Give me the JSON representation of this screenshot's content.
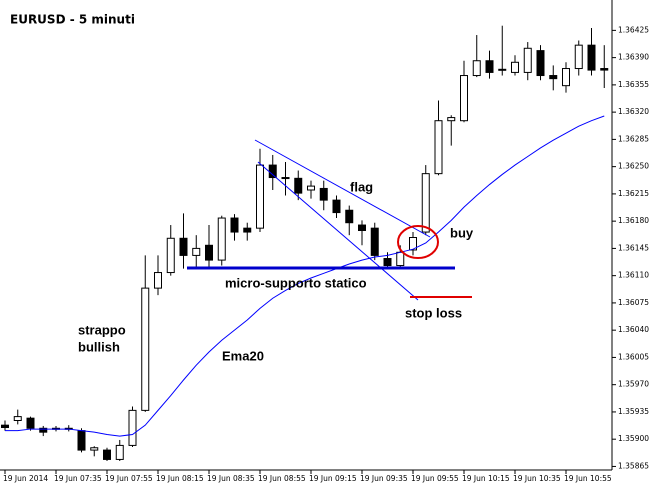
{
  "chart_data": {
    "type": "candlestick",
    "title": "EURUSD - 5 minuti",
    "categories": [
      "19 Jun 2014",
      null,
      null,
      null,
      "19 Jun 07:35",
      null,
      null,
      null,
      "19 Jun 07:55",
      null,
      null,
      null,
      "19 Jun 08:15",
      null,
      null,
      null,
      "19 Jun 08:35",
      null,
      null,
      null,
      "19 Jun 08:55",
      null,
      null,
      null,
      "19 Jun 09:15",
      null,
      null,
      null,
      "19 Jun 09:35",
      null,
      null,
      null,
      "19 Jun 09:55",
      null,
      null,
      null,
      "19 Jun 10:15",
      null,
      null,
      null,
      "19 Jun 10:35",
      null,
      null,
      null,
      "19 Jun 10:55",
      null,
      null,
      null
    ],
    "open": [
      1.35918,
      1.35924,
      1.35927,
      1.35914,
      1.35913,
      1.35914,
      1.35911,
      1.35886,
      1.35886,
      1.35874,
      1.35892,
      1.35937,
      1.36094,
      1.36114,
      1.36158,
      1.36136,
      1.36149,
      1.3613,
      1.36184,
      1.36171,
      1.36171,
      1.36252,
      1.36236,
      1.36235,
      1.3622,
      1.36222,
      1.36207,
      1.36194,
      1.36175,
      1.36171,
      1.36132,
      1.36123,
      1.36143,
      1.36166,
      1.36241,
      1.36309,
      1.36309,
      1.36367,
      1.36386,
      1.36374,
      1.36371,
      1.36371,
      1.36399,
      1.36367,
      1.36354,
      1.36376,
      1.36406,
      1.36376
    ],
    "high": [
      1.35924,
      1.35938,
      1.35929,
      1.35917,
      1.35917,
      1.35918,
      1.35914,
      1.35891,
      1.35889,
      1.35899,
      1.35942,
      1.36136,
      1.36136,
      1.36175,
      1.3619,
      1.36162,
      1.36175,
      1.36187,
      1.36189,
      1.36178,
      1.36273,
      1.36265,
      1.36256,
      1.36245,
      1.36232,
      1.36232,
      1.36213,
      1.362,
      1.36181,
      1.36178,
      1.3614,
      1.36149,
      1.36166,
      1.36252,
      1.36335,
      1.36316,
      1.36386,
      1.36419,
      1.36399,
      1.36431,
      1.36393,
      1.3641,
      1.36406,
      1.3638,
      1.36384,
      1.36412,
      1.36428,
      1.36406
    ],
    "low": [
      1.35911,
      1.35919,
      1.35911,
      1.35904,
      1.3591,
      1.3591,
      1.35883,
      1.35878,
      1.35872,
      1.35872,
      1.3589,
      1.35935,
      1.36085,
      1.3611,
      1.36119,
      1.36119,
      1.36119,
      1.36123,
      1.36155,
      1.36155,
      1.36166,
      1.3622,
      1.36213,
      1.36207,
      1.36209,
      1.36194,
      1.36184,
      1.36162,
      1.36149,
      1.3613,
      1.36119,
      1.36119,
      1.36136,
      1.36162,
      1.36239,
      1.36277,
      1.36307,
      1.36365,
      1.36363,
      1.36367,
      1.36367,
      1.36361,
      1.36361,
      1.36348,
      1.36345,
      1.36367,
      1.36367,
      1.36351
    ],
    "close": [
      1.35915,
      1.35929,
      1.35914,
      1.35909,
      1.35914,
      1.35913,
      1.35886,
      1.35889,
      1.35874,
      1.35892,
      1.35937,
      1.36094,
      1.36114,
      1.36158,
      1.36136,
      1.36145,
      1.3613,
      1.36184,
      1.36166,
      1.36166,
      1.36252,
      1.36236,
      1.36235,
      1.36216,
      1.36225,
      1.36207,
      1.36191,
      1.36178,
      1.36168,
      1.36136,
      1.36123,
      1.3614,
      1.36159,
      1.36241,
      1.36309,
      1.36313,
      1.36367,
      1.36386,
      1.36371,
      1.36375,
      1.36384,
      1.36402,
      1.36367,
      1.36363,
      1.36376,
      1.36406,
      1.36374,
      1.36374
    ],
    "lines": [
      {
        "color": "#0000ff",
        "values": [
          1.35911,
          1.35911,
          1.35913,
          1.35913,
          1.35913,
          1.35913,
          1.35911,
          1.35909,
          1.35906,
          1.35904,
          1.35906,
          1.35918,
          1.35937,
          1.35956,
          1.35976,
          1.35995,
          1.36012,
          1.36027,
          1.3604,
          1.36053,
          1.36068,
          1.36081,
          1.36091,
          1.361,
          1.36107,
          1.36113,
          1.36119,
          1.36125,
          1.3613,
          1.36134,
          1.36136,
          1.3614,
          1.36144,
          1.36152,
          1.36166,
          1.36181,
          1.36198,
          1.36213,
          1.36227,
          1.3624,
          1.36252,
          1.36263,
          1.36274,
          1.36284,
          1.36293,
          1.36302,
          1.36309,
          1.36315
        ]
      }
    ],
    "ylim": [
      1.35863,
      1.36464
    ],
    "yticks": [
      1.36425,
      {
        "value": 1.3639,
        "label": "1.36390"
      },
      1.36355,
      {
        "value": 1.3632,
        "label": "1.36320"
      },
      1.36285,
      {
        "value": 1.3625,
        "label": "1.36250"
      },
      1.36215,
      {
        "value": 1.3618,
        "label": "1.36180"
      },
      1.36145,
      {
        "value": 1.3611,
        "label": "1.36110"
      },
      1.36075,
      {
        "value": 1.3604,
        "label": "1.36040"
      },
      1.36005,
      {
        "value": 1.3597,
        "label": "1.35970"
      },
      1.35935,
      {
        "value": 1.359,
        "label": "1.35900"
      },
      1.35865
    ],
    "up_color": "#ffffff",
    "down_color": "#000000",
    "annotations": [
      "flag",
      "buy",
      "micro-supporto statico",
      "strappo",
      "bullish",
      "Ema20",
      "stop loss"
    ]
  }
}
